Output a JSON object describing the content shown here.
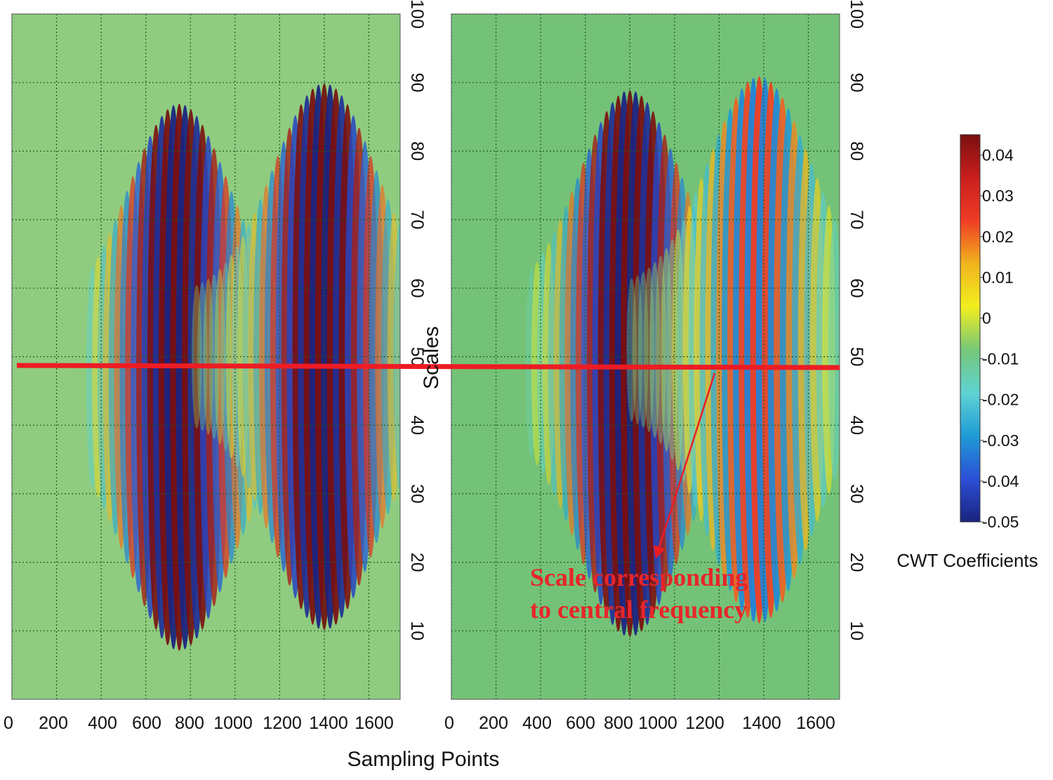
{
  "chart_data": [
    {
      "type": "heatmap",
      "panel": "left",
      "title": "",
      "xlabel": "Sampling Points",
      "ylabel": "Scales",
      "xlim": [
        0,
        1740
      ],
      "ylim": [
        0,
        100
      ],
      "x_ticks": [
        "0",
        "200",
        "400",
        "600",
        "800",
        "1000",
        "1200",
        "1400",
        "1600"
      ],
      "y_ticks": [
        "10",
        "20",
        "30",
        "40",
        "50",
        "60",
        "70",
        "80",
        "90",
        "100"
      ],
      "grid": true,
      "bursts": [
        {
          "center_x": 750,
          "center_scale": 47,
          "peak_abs": 0.05
        },
        {
          "center_x": 1400,
          "center_scale": 50,
          "peak_abs": 0.05
        }
      ],
      "highlight_scale": 49
    },
    {
      "type": "heatmap",
      "panel": "right",
      "title": "",
      "xlabel": "Sampling Points",
      "ylabel": "Scales",
      "xlim": [
        0,
        1740
      ],
      "ylim": [
        0,
        100
      ],
      "x_ticks": [
        "0",
        "200",
        "400",
        "600",
        "800",
        "1000",
        "1200",
        "1400",
        "1600"
      ],
      "y_ticks": [
        "10",
        "20",
        "30",
        "40",
        "50",
        "60",
        "70",
        "80",
        "90",
        "100"
      ],
      "grid": true,
      "bursts": [
        {
          "center_x": 800,
          "center_scale": 49,
          "peak_abs": 0.05
        },
        {
          "center_x": 1380,
          "center_scale": 51,
          "peak_abs": 0.03
        }
      ],
      "highlight_scale": 49
    }
  ],
  "colorbar": {
    "title": "CWT Coefficients",
    "range": [
      -0.05,
      0.045
    ],
    "labels": [
      "0.04",
      "0.03",
      "0.02",
      "0.01",
      "0",
      "-0.01",
      "-0.02",
      "-0.03",
      "-0.04",
      "-0.05"
    ],
    "colors": [
      "#1a237e",
      "#2b4fd6",
      "#1f9bd6",
      "#5fd3d3",
      "#76c879",
      "#f2ee1e",
      "#f0b41e",
      "#ef3c25",
      "#c91e1e",
      "#7a0f10"
    ]
  },
  "annotation": {
    "line1": "Scale corresponding",
    "line2": "to central frequency"
  },
  "shared": {
    "xlabel": "Sampling Points",
    "ylabel": "Scales"
  },
  "colors": {
    "highlight": "#ed1c24",
    "grid": "#1f5a1f",
    "background": "#7dc77d"
  }
}
